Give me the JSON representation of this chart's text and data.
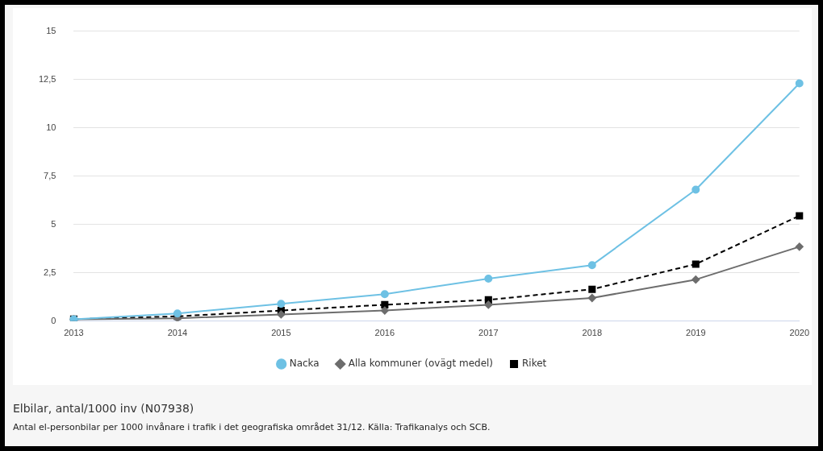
{
  "chart_data": {
    "type": "line",
    "title": "Elbilar, antal/1000 inv (N07938)",
    "annotations": [
      "Antal el-personbilar per 1000 invånare i trafik i det geografiska området 31/12. Källa: Trafikanalys och SCB."
    ],
    "categories": [
      "2013",
      "2014",
      "2015",
      "2016",
      "2017",
      "2018",
      "2019",
      "2020"
    ],
    "series": [
      {
        "name": "Nacka",
        "color": "#6ec1e4",
        "marker": "circle",
        "line_style": "solid",
        "values": [
          0.1,
          0.4,
          0.9,
          1.4,
          2.2,
          2.9,
          6.8,
          12.3
        ]
      },
      {
        "name": "Alla kommuner (ovägt medel)",
        "color": "#6d6d6d",
        "marker": "diamond",
        "line_style": "solid",
        "values": [
          0.1,
          0.15,
          0.35,
          0.55,
          0.85,
          1.2,
          2.15,
          3.85
        ]
      },
      {
        "name": "Riket",
        "color": "#000000",
        "marker": "square",
        "line_style": "dashed",
        "values": [
          0.1,
          0.25,
          0.55,
          0.85,
          1.1,
          1.65,
          2.95,
          5.45
        ]
      }
    ],
    "ylim": [
      0,
      15
    ],
    "yticks": [
      0,
      {
        "value": 2.5,
        "label": "2,5"
      },
      5,
      {
        "value": 7.5,
        "label": "7,5"
      },
      10,
      {
        "value": 12.5,
        "label": "12,5"
      },
      15
    ],
    "grid": "y",
    "legend": "bottom"
  }
}
